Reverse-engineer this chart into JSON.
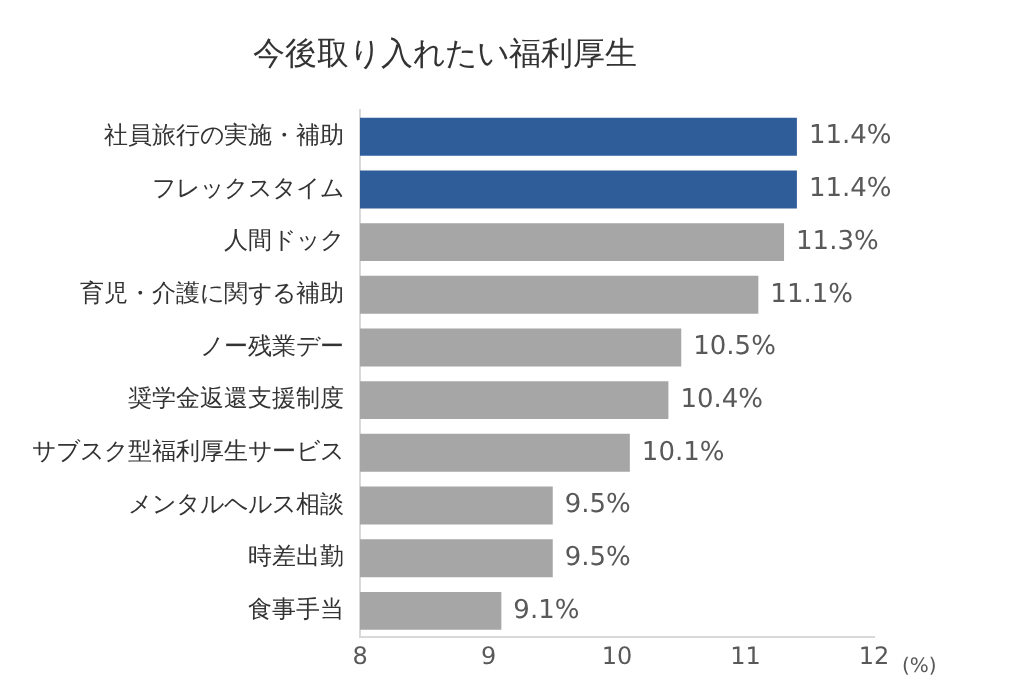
{
  "chart_data": {
    "type": "bar",
    "orientation": "horizontal",
    "title": "今後取り入れたい福利厚生",
    "xlabel": "(%)",
    "categories": [
      "社員旅行の実施・補助",
      "フレックスタイム",
      "人間ドック",
      "育児・介護に関する補助",
      "ノー残業デー",
      "奨学金返還支援制度",
      "サブスク型福利厚生サービス",
      "メンタルヘルス相談",
      "時差出勤",
      "食事手当"
    ],
    "values": [
      11.4,
      11.4,
      11.3,
      11.1,
      10.5,
      10.4,
      10.1,
      9.5,
      9.5,
      9.1
    ],
    "value_labels": [
      "11.4%",
      "11.4%",
      "11.3%",
      "11.1%",
      "10.5%",
      "10.4%",
      "10.1%",
      "9.5%",
      "9.5%",
      "9.1%"
    ],
    "colors": [
      "#2e5d9a",
      "#2e5d9a",
      "#a6a6a6",
      "#a6a6a6",
      "#a6a6a6",
      "#a6a6a6",
      "#a6a6a6",
      "#a6a6a6",
      "#a6a6a6",
      "#a6a6a6"
    ],
    "xlim": [
      8,
      12
    ],
    "xticks": [
      8,
      9,
      10,
      11,
      12
    ],
    "grid": false,
    "legend": false
  }
}
